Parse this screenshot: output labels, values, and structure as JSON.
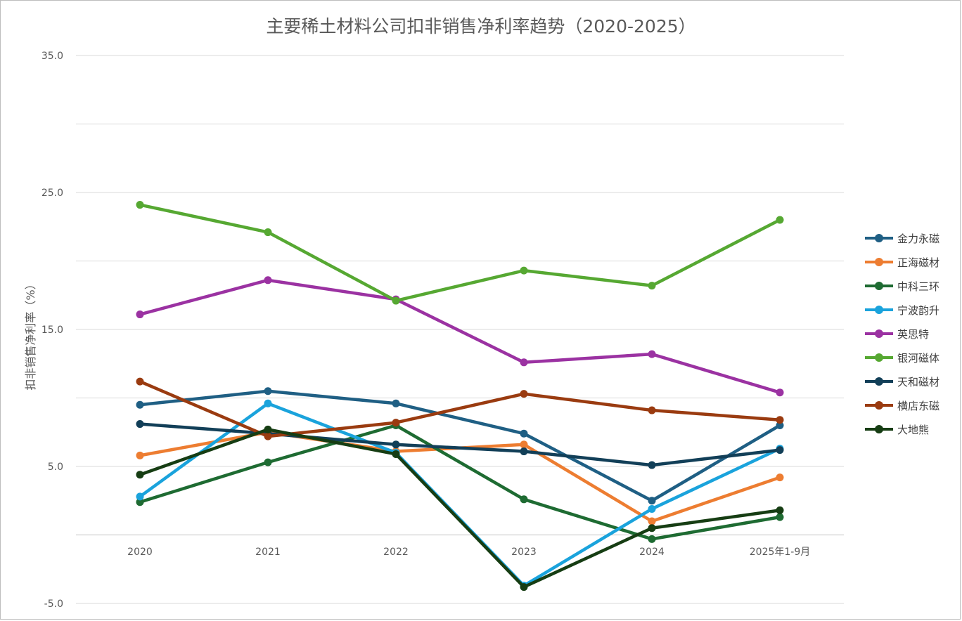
{
  "chart_data": {
    "type": "line",
    "title": "主要稀土材料公司扣非销售净利率趋势（2020-2025）",
    "ylabel": "扣非销售净利率（%）",
    "xlabel": "",
    "categories": [
      "2020",
      "2021",
      "2022",
      "2023",
      "2024",
      "2025年1-9月"
    ],
    "ylim": [
      -5,
      35
    ],
    "yticks": [
      "-5.0",
      "5.0",
      "15.0",
      "25.0",
      "35.0"
    ],
    "ytick_values": [
      -5,
      5,
      15,
      25,
      35
    ],
    "grid": true,
    "legend_position": "right",
    "series": [
      {
        "name": "金力永磁",
        "color": "#1f5f84",
        "values": [
          9.5,
          10.5,
          9.6,
          7.4,
          2.5,
          8.0
        ]
      },
      {
        "name": "正海磁材",
        "color": "#ed7d31",
        "values": [
          5.8,
          7.5,
          6.1,
          6.6,
          1.0,
          4.2
        ]
      },
      {
        "name": "中科三环",
        "color": "#1e6b32",
        "values": [
          2.4,
          5.3,
          8.0,
          2.6,
          -0.3,
          1.3
        ]
      },
      {
        "name": "宁波韵升",
        "color": "#1aa3dc",
        "values": [
          2.8,
          9.6,
          6.0,
          -3.7,
          1.9,
          6.3
        ]
      },
      {
        "name": "英思特",
        "color": "#9b32a2",
        "values": [
          16.1,
          18.6,
          17.2,
          12.6,
          13.2,
          10.4
        ]
      },
      {
        "name": "银河磁体",
        "color": "#56a832",
        "values": [
          24.1,
          22.1,
          17.1,
          19.3,
          18.2,
          23.0
        ]
      },
      {
        "name": "天和磁材",
        "color": "#123f58",
        "values": [
          8.1,
          7.4,
          6.6,
          6.1,
          5.1,
          6.2
        ]
      },
      {
        "name": "横店东磁",
        "color": "#9a3b10",
        "values": [
          11.2,
          7.2,
          8.2,
          10.3,
          9.1,
          8.4
        ]
      },
      {
        "name": "大地熊",
        "color": "#163d13",
        "values": [
          4.4,
          7.7,
          5.9,
          -3.8,
          0.5,
          1.8
        ]
      }
    ]
  }
}
